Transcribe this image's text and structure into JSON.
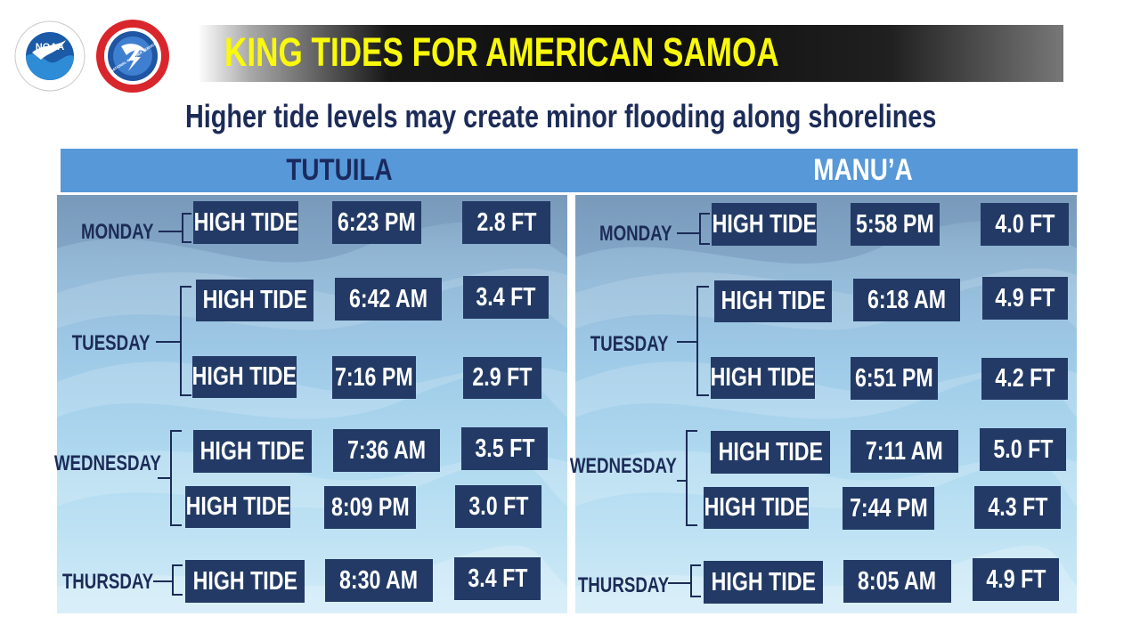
{
  "header": {
    "title": "KING TIDES FOR AMERICAN SAMOA",
    "subtitle": "Higher tide levels may create minor flooding along shorelines",
    "logos": [
      {
        "name": "noaa-logo",
        "text": "NOAA"
      },
      {
        "name": "nws-logo",
        "text": "NATIONAL WEATHER SERVICE"
      }
    ],
    "colors": {
      "title": "#f9f90b",
      "subtitle": "#1c2b57",
      "band": "#5798d8",
      "cell": "#223a65"
    }
  },
  "regions": [
    {
      "name": "TUTUILA",
      "days": [
        {
          "day": "MONDAY",
          "tides": [
            {
              "label": "HIGH TIDE",
              "time": "6:23 PM",
              "height": "2.8 FT"
            }
          ]
        },
        {
          "day": "TUESDAY",
          "tides": [
            {
              "label": "HIGH TIDE",
              "time": "6:42 AM",
              "height": "3.4 FT"
            },
            {
              "label": "HIGH TIDE",
              "time": "7:16 PM",
              "height": "2.9 FT"
            }
          ]
        },
        {
          "day": "WEDNESDAY",
          "tides": [
            {
              "label": "HIGH TIDE",
              "time": "7:36 AM",
              "height": "3.5 FT"
            },
            {
              "label": "HIGH TIDE",
              "time": "8:09 PM",
              "height": "3.0 FT"
            }
          ]
        },
        {
          "day": "THURSDAY",
          "tides": [
            {
              "label": "HIGH TIDE",
              "time": "8:30 AM",
              "height": "3.4 FT"
            }
          ]
        }
      ]
    },
    {
      "name": "MANU’A",
      "days": [
        {
          "day": "MONDAY",
          "tides": [
            {
              "label": "HIGH TIDE",
              "time": "5:58 PM",
              "height": "4.0 FT"
            }
          ]
        },
        {
          "day": "TUESDAY",
          "tides": [
            {
              "label": "HIGH TIDE",
              "time": "6:18 AM",
              "height": "4.9 FT"
            },
            {
              "label": "HIGH TIDE",
              "time": "6:51 PM",
              "height": "4.2 FT"
            }
          ]
        },
        {
          "day": "WEDNESDAY",
          "tides": [
            {
              "label": "HIGH TIDE",
              "time": "7:11 AM",
              "height": "5.0 FT"
            },
            {
              "label": "HIGH TIDE",
              "time": "7:44 PM",
              "height": "4.3 FT"
            }
          ]
        },
        {
          "day": "THURSDAY",
          "tides": [
            {
              "label": "HIGH TIDE",
              "time": "8:05 AM",
              "height": "4.9 FT"
            }
          ]
        }
      ]
    }
  ]
}
